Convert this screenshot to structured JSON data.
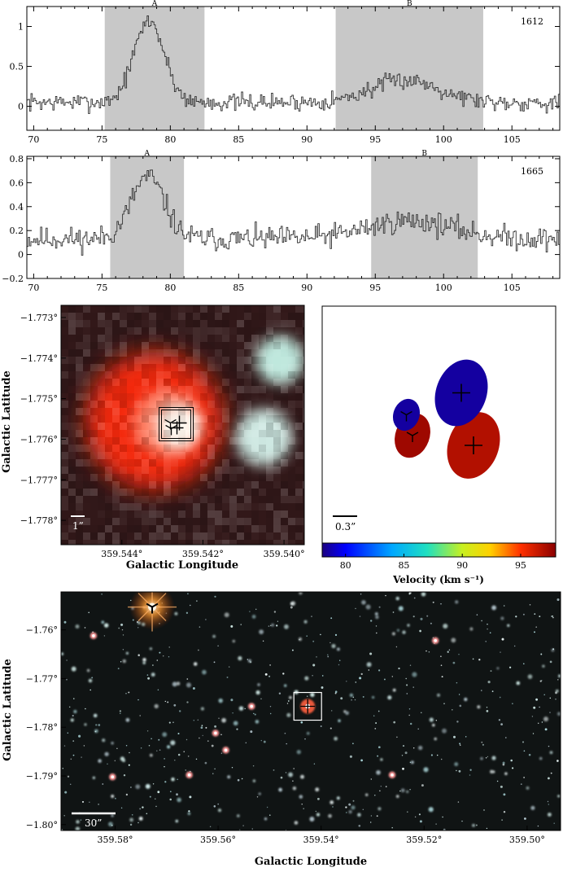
{
  "chart_data": [
    {
      "type": "line",
      "panel": "spectrum-1612",
      "label": "1612",
      "xlim": [
        69.5,
        108.5
      ],
      "ylim": [
        -0.3,
        1.25
      ],
      "xticks": [
        70,
        75,
        80,
        85,
        90,
        95,
        100,
        105
      ],
      "yticks": [
        0,
        0.5,
        1
      ],
      "ytick_labels": [
        "0",
        "0.5",
        "1"
      ],
      "regions": [
        {
          "name": "A",
          "x": [
            75.2,
            82.5
          ]
        },
        {
          "name": "B",
          "x": [
            92.1,
            102.9
          ]
        }
      ],
      "features": [
        {
          "center": 78.4,
          "width": 1.1,
          "peak": 1.02
        },
        {
          "center": 97.2,
          "width": 2.5,
          "peak": 0.28
        }
      ],
      "baseline": 0.05,
      "noise": 0.1,
      "grid": false
    },
    {
      "type": "line",
      "panel": "spectrum-1665",
      "label": "1665",
      "xlim": [
        69.5,
        108.5
      ],
      "ylim": [
        -0.2,
        0.82
      ],
      "xticks": [
        70,
        75,
        80,
        85,
        90,
        95,
        100,
        105
      ],
      "yticks": [
        -0.2,
        0,
        0.2,
        0.4,
        0.6,
        0.8
      ],
      "ytick_labels": [
        "−0.2",
        "0",
        "0.2",
        "0.4",
        "0.6",
        "0.8"
      ],
      "regions": [
        {
          "name": "A",
          "x": [
            75.6,
            81.0
          ]
        },
        {
          "name": "B",
          "x": [
            94.7,
            102.5
          ]
        }
      ],
      "features": [
        {
          "center": 78.3,
          "width": 1.2,
          "peak": 0.52
        },
        {
          "center": 97.5,
          "width": 3.2,
          "peak": 0.15
        }
      ],
      "baseline": 0.13,
      "noise": 0.09,
      "grid": false
    },
    {
      "type": "scatter",
      "panel": "zoom-image",
      "xlabel": "Galactic Longitude",
      "ylabel": "Galactic Latitude",
      "xlim": [
        359.5455,
        359.5395
      ],
      "ylim": [
        -1.7786,
        -1.7727
      ],
      "xticks": [
        359.544,
        359.542,
        359.54
      ],
      "xtick_labels": [
        "359.544°",
        "359.542°",
        "359.540°"
      ],
      "yticks": [
        -1.773,
        -1.774,
        -1.775,
        -1.776,
        -1.777,
        -1.778
      ],
      "ytick_labels": [
        "−1.773°",
        "−1.774°",
        "−1.775°",
        "−1.776°",
        "−1.777°",
        "−1.778°"
      ],
      "scale_bar": "1”",
      "sources": [
        {
          "l": 359.5426,
          "b": -1.77568,
          "size": 0.00055,
          "color": "#fff7ee"
        }
      ],
      "nebula": [
        {
          "l": 359.5432,
          "b": -1.77555,
          "r": 0.0017,
          "color": "#ff2b10"
        },
        {
          "l": 359.5405,
          "b": -1.77595,
          "r": 0.0007,
          "color": "#dffff8"
        },
        {
          "l": 359.5401,
          "b": -1.77405,
          "r": 0.0006,
          "color": "#cffff3"
        }
      ]
    },
    {
      "type": "scatter",
      "panel": "maser-map",
      "scale_bar": "0.3”",
      "colorbar_label": "Velocity (km s⁻¹)",
      "colorbar_range": [
        78,
        98
      ],
      "colorbar_ticks": [
        80,
        85,
        90,
        95
      ],
      "spots": [
        {
          "id": "1612-B",
          "velocity": 97,
          "dx": 0.28,
          "dy": -0.18,
          "marker": "plus"
        },
        {
          "id": "1612-A",
          "velocity": 78.5,
          "dx": 0.18,
          "dy": 0.25,
          "marker": "plus"
        },
        {
          "id": "1665-B",
          "velocity": 97.5,
          "dx": -0.22,
          "dy": -0.1,
          "marker": "tri"
        },
        {
          "id": "1665-A",
          "velocity": 78.5,
          "dx": -0.27,
          "dy": 0.07,
          "marker": "tri"
        }
      ]
    },
    {
      "type": "scatter",
      "panel": "wide-field",
      "xlabel": "Galactic Longitude",
      "ylabel": "Galactic Latitude",
      "xlim": [
        359.5905,
        359.4935
      ],
      "ylim": [
        -1.7522,
        -1.8012
      ],
      "xticks": [
        359.58,
        359.56,
        359.54,
        359.52,
        359.5
      ],
      "xtick_labels": [
        "359.58°",
        "359.56°",
        "359.54°",
        "359.52°",
        "359.50°"
      ],
      "yticks": [
        -1.76,
        -1.77,
        -1.78,
        -1.79,
        -1.8
      ],
      "ytick_labels": [
        "−1.76°",
        "−1.77°",
        "−1.78°",
        "−1.79°",
        "−1.80°"
      ],
      "scale_bar": "30”",
      "bright_star": {
        "l": 359.5728,
        "b": -1.7553
      },
      "target": {
        "l": 359.5426,
        "b": -1.7757
      },
      "red_stars": [
        {
          "l": 359.5842,
          "b": -1.7612
        },
        {
          "l": 359.5605,
          "b": -1.7812
        },
        {
          "l": 359.5585,
          "b": -1.7847
        },
        {
          "l": 359.5535,
          "b": -1.7757
        },
        {
          "l": 359.5178,
          "b": -1.7622
        },
        {
          "l": 359.5262,
          "b": -1.7898
        },
        {
          "l": 359.5656,
          "b": -1.7898
        },
        {
          "l": 359.5805,
          "b": -1.7902
        }
      ],
      "star_count": 620
    }
  ]
}
